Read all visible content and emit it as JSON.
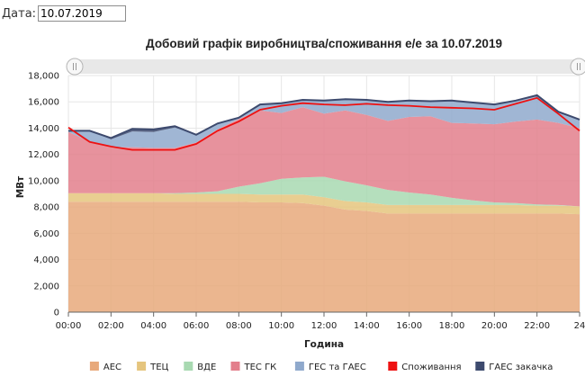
{
  "date_field": {
    "label": "Дата:",
    "value": "10.07.2019"
  },
  "chart_data": {
    "type": "area",
    "title": "Добовий графік виробництва/споживання е/е за 10.07.2019",
    "xlabel": "Година",
    "ylabel": "МВт",
    "ylim": [
      0,
      18000
    ],
    "y_ticks": [
      0,
      2000,
      4000,
      6000,
      8000,
      10000,
      12000,
      14000,
      16000,
      18000
    ],
    "y_tick_labels": [
      "0",
      "2,000",
      "4,000",
      "6,000",
      "8,000",
      "10,000",
      "12,000",
      "14,000",
      "16,000",
      "18,000"
    ],
    "x_ticks": [
      0,
      2,
      4,
      6,
      8,
      10,
      12,
      14,
      16,
      18,
      20,
      22,
      24
    ],
    "x_tick_labels": [
      "00:00",
      "02:00",
      "04:00",
      "06:00",
      "08:00",
      "10:00",
      "12:00",
      "14:00",
      "16:00",
      "18:00",
      "20:00",
      "22:00",
      "24"
    ],
    "x": [
      0,
      1,
      2,
      3,
      4,
      5,
      6,
      7,
      8,
      9,
      10,
      11,
      12,
      13,
      14,
      15,
      16,
      17,
      18,
      19,
      20,
      21,
      22,
      23,
      24
    ],
    "stacked": true,
    "legend_position": "bottom",
    "series": [
      {
        "name": "АЕС",
        "kind": "area",
        "color": "#e8a97b",
        "values": [
          8400,
          8400,
          8400,
          8400,
          8400,
          8400,
          8400,
          8400,
          8400,
          8350,
          8350,
          8300,
          8100,
          7800,
          7700,
          7500,
          7500,
          7500,
          7500,
          7500,
          7500,
          7500,
          7500,
          7500,
          7450
        ]
      },
      {
        "name": "ТЕЦ",
        "kind": "area",
        "color": "#e5c57e",
        "values": [
          650,
          650,
          650,
          650,
          650,
          600,
          600,
          600,
          600,
          600,
          600,
          650,
          650,
          650,
          650,
          650,
          650,
          650,
          650,
          650,
          650,
          650,
          600,
          600,
          600
        ]
      },
      {
        "name": "ВДЕ",
        "kind": "area",
        "color": "#a8d9b1",
        "values": [
          0,
          0,
          0,
          0,
          0,
          50,
          100,
          200,
          550,
          850,
          1200,
          1300,
          1550,
          1500,
          1300,
          1150,
          950,
          800,
          550,
          350,
          200,
          150,
          100,
          50,
          0
        ]
      },
      {
        "name": "ТЕС ГК",
        "kind": "area",
        "color": "#e37f8c",
        "values": [
          4650,
          3950,
          3500,
          3500,
          3450,
          3450,
          3800,
          4700,
          5150,
          5550,
          5000,
          5350,
          4800,
          5400,
          5350,
          5250,
          5750,
          5950,
          5700,
          5850,
          5950,
          6200,
          6450,
          6250,
          5950
        ]
      },
      {
        "name": "ГЕС та ГАЕС",
        "kind": "area",
        "color": "#8fa9cc",
        "values": [
          100,
          800,
          600,
          1200,
          1200,
          1550,
          600,
          450,
          100,
          450,
          750,
          550,
          1000,
          850,
          1150,
          1450,
          1250,
          1150,
          1700,
          1600,
          1500,
          1600,
          1850,
          850,
          650
        ]
      },
      {
        "name": "Споживання",
        "kind": "line",
        "color": "#ee1111",
        "values": [
          14050,
          12950,
          12600,
          12350,
          12350,
          12350,
          12800,
          13800,
          14500,
          15400,
          15700,
          15900,
          15800,
          15750,
          15850,
          15750,
          15700,
          15600,
          15550,
          15500,
          15400,
          15850,
          16300,
          15100,
          13800
        ]
      },
      {
        "name": "ГАЕС закачка",
        "kind": "area",
        "color": "#3d4a6e",
        "values": [
          0,
          0,
          100,
          200,
          200,
          100,
          0,
          0,
          0,
          0,
          0,
          0,
          0,
          0,
          0,
          0,
          0,
          0,
          0,
          0,
          0,
          0,
          0,
          0,
          0
        ]
      }
    ]
  }
}
